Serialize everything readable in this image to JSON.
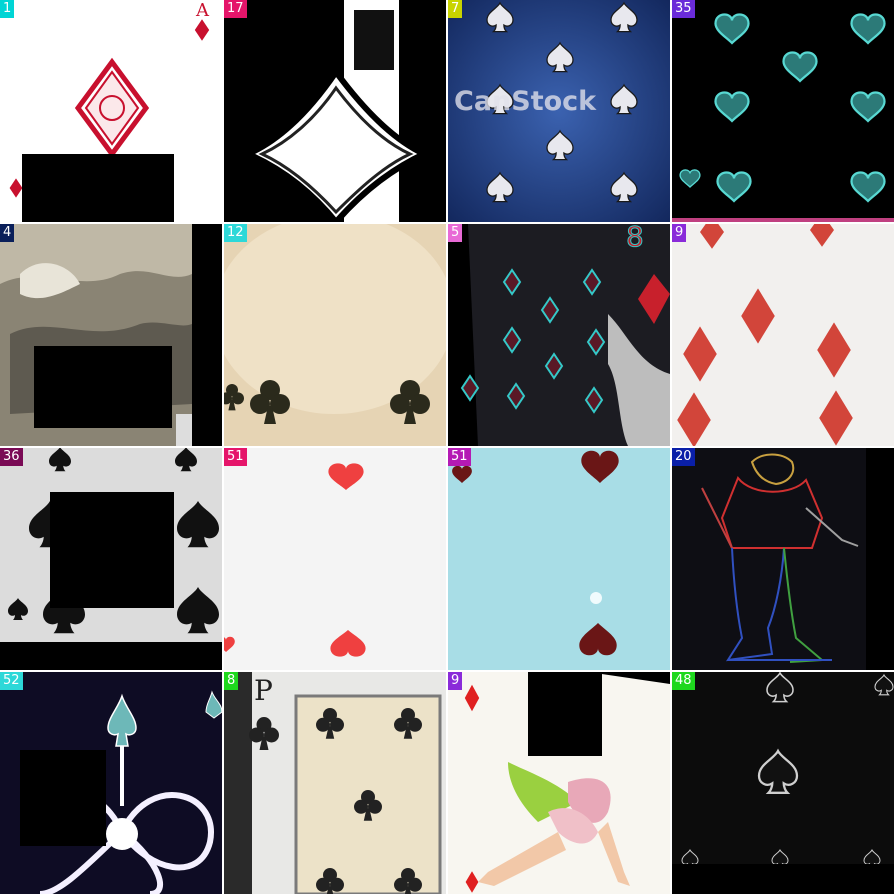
{
  "tiles": [
    {
      "label": "1",
      "label_color": "#00d5d5",
      "description": "ace of diamonds corner, white card"
    },
    {
      "label": "17",
      "label_color": "#e5156a",
      "description": "jack card with diamond outline, black and white"
    },
    {
      "label": "7",
      "label_color": "#c8d400",
      "description": "blue textured card with silver spades",
      "watermark": "CanStock"
    },
    {
      "label": "35",
      "label_color": "#6a2bd9",
      "description": "black card with glowing teal hearts"
    },
    {
      "label": "4",
      "label_color": "#0a1f5a",
      "description": "vintage sepia photo card"
    },
    {
      "label": "12",
      "label_color": "#2dd8d8",
      "description": "aged parchment card with clubs"
    },
    {
      "label": "5",
      "label_color": "#e86ad6",
      "description": "dark card with cyan-outlined diamonds"
    },
    {
      "label": "9",
      "label_color": "#8a2bd9",
      "description": "white card with red diamonds"
    },
    {
      "label": "36",
      "label_color": "#7a0a55",
      "description": "grey card with spades"
    },
    {
      "label": "51",
      "label_color": "#e5156a",
      "description": "white card with red hearts"
    },
    {
      "label": "51",
      "label_color": "#b41ab4",
      "description": "light blue card with dark red hearts"
    },
    {
      "label": "20",
      "label_color": "#0a1fa8",
      "description": "jester figure edge-detected"
    },
    {
      "label": "52",
      "label_color": "#2dd8d8",
      "description": "dark card with ornate ace of spades"
    },
    {
      "label": "8",
      "label_color": "#1ed81e",
      "description": "five of clubs card"
    },
    {
      "label": "9",
      "label_color": "#8a2bd9",
      "description": "pin-up dancer card with diamond"
    },
    {
      "label": "48",
      "label_color": "#1ed81e",
      "description": "black card with dark spades"
    }
  ]
}
